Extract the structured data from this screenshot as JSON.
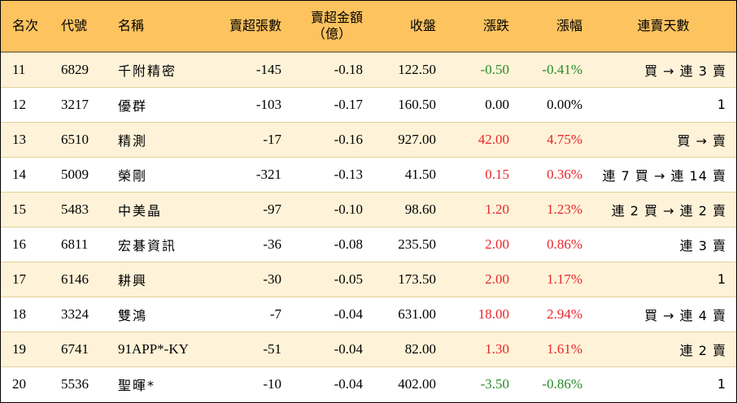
{
  "headers": {
    "rank": "名次",
    "code": "代號",
    "name": "名稱",
    "sell_over_qty": "賣超張數",
    "sell_over_amount_line1": "賣超金額",
    "sell_over_amount_line2": "（億）",
    "close": "收盤",
    "change": "漲跌",
    "change_pct": "漲幅",
    "streak": "連賣天數"
  },
  "colors": {
    "header_bg": "#fdc35f",
    "odd_row_bg": "#fef3d8",
    "even_row_bg": "#ffffff",
    "down": "#2a8a2a",
    "up": "#e8262a",
    "flat": "#000000"
  },
  "rows": [
    {
      "rank": "11",
      "code": "6829",
      "name": "千附精密",
      "qty": "-145",
      "amount": "-0.18",
      "close": "122.50",
      "change": "-0.50",
      "change_pct": "-0.41%",
      "trend": "down",
      "streak": "買 → 連 3 賣"
    },
    {
      "rank": "12",
      "code": "3217",
      "name": "優群",
      "qty": "-103",
      "amount": "-0.17",
      "close": "160.50",
      "change": "0.00",
      "change_pct": "0.00%",
      "trend": "flat",
      "streak": "1"
    },
    {
      "rank": "13",
      "code": "6510",
      "name": "精測",
      "qty": "-17",
      "amount": "-0.16",
      "close": "927.00",
      "change": "42.00",
      "change_pct": "4.75%",
      "trend": "up",
      "streak": "買 → 賣"
    },
    {
      "rank": "14",
      "code": "5009",
      "name": "榮剛",
      "qty": "-321",
      "amount": "-0.13",
      "close": "41.50",
      "change": "0.15",
      "change_pct": "0.36%",
      "trend": "up",
      "streak": "連 7 買 → 連 14 賣"
    },
    {
      "rank": "15",
      "code": "5483",
      "name": "中美晶",
      "qty": "-97",
      "amount": "-0.10",
      "close": "98.60",
      "change": "1.20",
      "change_pct": "1.23%",
      "trend": "up",
      "streak": "連 2 買 → 連 2 賣"
    },
    {
      "rank": "16",
      "code": "6811",
      "name": "宏碁資訊",
      "qty": "-36",
      "amount": "-0.08",
      "close": "235.50",
      "change": "2.00",
      "change_pct": "0.86%",
      "trend": "up",
      "streak": "連 3 賣"
    },
    {
      "rank": "17",
      "code": "6146",
      "name": "耕興",
      "qty": "-30",
      "amount": "-0.05",
      "close": "173.50",
      "change": "2.00",
      "change_pct": "1.17%",
      "trend": "up",
      "streak": "1"
    },
    {
      "rank": "18",
      "code": "3324",
      "name": "雙鴻",
      "qty": "-7",
      "amount": "-0.04",
      "close": "631.00",
      "change": "18.00",
      "change_pct": "2.94%",
      "trend": "up",
      "streak": "買 → 連 4 賣"
    },
    {
      "rank": "19",
      "code": "6741",
      "name": "91APP*-KY",
      "qty": "-51",
      "amount": "-0.04",
      "close": "82.00",
      "change": "1.30",
      "change_pct": "1.61%",
      "trend": "up",
      "streak": "連 2 賣"
    },
    {
      "rank": "20",
      "code": "5536",
      "name": "聖暉*",
      "qty": "-10",
      "amount": "-0.04",
      "close": "402.00",
      "change": "-3.50",
      "change_pct": "-0.86%",
      "trend": "down",
      "streak": "1"
    }
  ]
}
